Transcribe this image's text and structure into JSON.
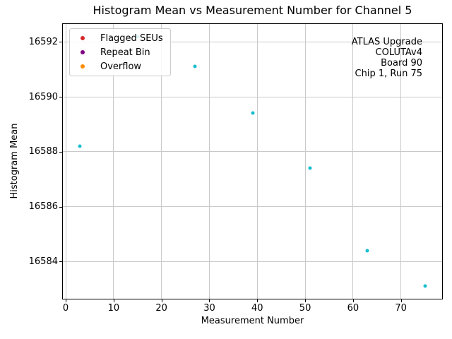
{
  "chart_data": {
    "type": "scatter",
    "title": "Histogram Mean vs Measurement Number for Channel 5",
    "xlabel": "Measurement Number",
    "ylabel": "Histogram Mean",
    "xlim": [
      -0.6,
      78.6
    ],
    "ylim": [
      16582.65,
      16592.65
    ],
    "xticks": [
      0,
      10,
      20,
      30,
      40,
      50,
      60,
      70
    ],
    "yticks": [
      16584,
      16586,
      16588,
      16590,
      16592
    ],
    "grid": true,
    "marker_color": "#17becf",
    "x": [
      3,
      15,
      27,
      39,
      51,
      63,
      75
    ],
    "y": [
      16588.2,
      16592.2,
      16591.1,
      16589.4,
      16587.4,
      16584.4,
      16583.1
    ],
    "legend": {
      "position": "upper-left",
      "items": [
        {
          "label": "Flagged SEUs",
          "color": "#d62728"
        },
        {
          "label": "Repeat Bin",
          "color": "#800080"
        },
        {
          "label": "Overflow",
          "color": "#ff8c00"
        }
      ]
    },
    "annotation": {
      "position": "upper-right",
      "lines": [
        "ATLAS Upgrade",
        "COLUTAv4",
        "Board 90",
        "Chip 1, Run 75"
      ]
    }
  }
}
